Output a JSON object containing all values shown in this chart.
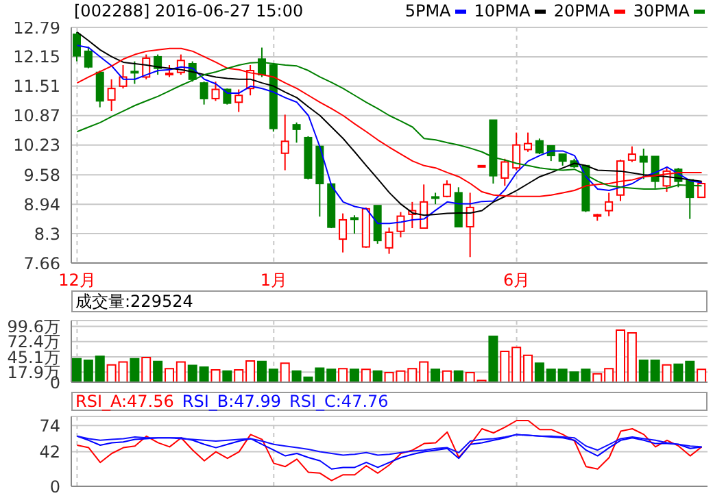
{
  "chart_data": [
    {
      "type": "candlestick",
      "title": "[002288] 2016-06-27 15:00",
      "legend": "top right",
      "grid": true,
      "categories": [
        "12月",
        null,
        null,
        null,
        null,
        null,
        null,
        null,
        null,
        null,
        null,
        null,
        null,
        null,
        null,
        null,
        null,
        "1月",
        null,
        null,
        null,
        null,
        null,
        null,
        null,
        null,
        null,
        null,
        null,
        null,
        null,
        null,
        null,
        null,
        null,
        null,
        null,
        null,
        "6月",
        null,
        null,
        null,
        null,
        null,
        null,
        null,
        null,
        null,
        null,
        null,
        null,
        null,
        null,
        null,
        null
      ],
      "ohlc": [
        [
          12.64,
          12.69,
          12.05,
          12.17
        ],
        [
          12.27,
          12.37,
          11.9,
          11.93
        ],
        [
          11.81,
          11.85,
          11.05,
          11.19
        ],
        [
          11.21,
          11.66,
          10.97,
          11.46
        ],
        [
          11.51,
          11.97,
          11.46,
          11.71
        ],
        [
          11.83,
          12.05,
          11.56,
          11.81
        ],
        [
          11.71,
          12.2,
          11.66,
          12.12
        ],
        [
          12.15,
          12.2,
          11.76,
          11.9
        ],
        [
          11.77,
          11.97,
          11.71,
          11.79
        ],
        [
          11.81,
          12.2,
          11.76,
          12.07
        ],
        [
          12.0,
          12.05,
          11.61,
          11.66
        ],
        [
          11.58,
          11.61,
          11.11,
          11.24
        ],
        [
          11.24,
          11.61,
          11.19,
          11.44
        ],
        [
          11.44,
          11.46,
          11.11,
          11.14
        ],
        [
          11.16,
          11.44,
          10.95,
          11.31
        ],
        [
          11.46,
          11.97,
          11.31,
          11.85
        ],
        [
          12.1,
          12.35,
          11.71,
          11.76
        ],
        [
          11.97,
          12.0,
          10.52,
          10.59
        ],
        [
          10.05,
          10.89,
          9.68,
          10.31
        ],
        [
          10.67,
          10.72,
          10.28,
          10.57
        ],
        [
          10.39,
          10.42,
          9.48,
          9.51
        ],
        [
          10.2,
          10.2,
          8.67,
          9.39
        ],
        [
          9.38,
          9.38,
          8.42,
          8.44
        ],
        [
          8.18,
          8.74,
          7.89,
          8.6
        ],
        [
          8.64,
          8.7,
          8.3,
          8.63
        ],
        [
          8.01,
          8.87,
          7.99,
          8.84
        ],
        [
          8.91,
          8.91,
          8.08,
          8.15
        ],
        [
          7.99,
          8.43,
          7.86,
          8.33
        ],
        [
          8.35,
          8.77,
          8.22,
          8.68
        ],
        [
          8.72,
          8.99,
          8.42,
          8.8
        ],
        [
          8.42,
          9.37,
          8.42,
          8.99
        ],
        [
          9.1,
          9.19,
          8.94,
          9.08
        ],
        [
          9.11,
          9.46,
          9.09,
          9.37
        ],
        [
          9.19,
          9.31,
          8.44,
          8.45
        ],
        [
          8.45,
          9.19,
          7.79,
          8.87
        ],
        [
          9.77,
          9.79,
          9.77,
          9.78
        ],
        [
          10.77,
          10.77,
          9.39,
          9.56
        ],
        [
          9.51,
          9.93,
          9.34,
          9.86
        ],
        [
          9.73,
          10.5,
          9.68,
          10.23
        ],
        [
          10.13,
          10.5,
          10.08,
          10.26
        ],
        [
          10.32,
          10.37,
          10.03,
          10.06
        ],
        [
          10.21,
          10.21,
          9.88,
          10.0
        ],
        [
          10.03,
          10.03,
          9.78,
          9.88
        ],
        [
          9.88,
          9.93,
          9.73,
          9.76
        ],
        [
          9.78,
          9.78,
          8.77,
          8.8
        ],
        [
          8.7,
          8.73,
          8.58,
          8.71
        ],
        [
          8.8,
          9.19,
          8.68,
          8.99
        ],
        [
          9.14,
          9.91,
          9.01,
          9.88
        ],
        [
          9.9,
          10.2,
          9.86,
          10.03
        ],
        [
          9.98,
          10.15,
          9.49,
          9.86
        ],
        [
          9.98,
          9.98,
          9.29,
          9.44
        ],
        [
          9.34,
          9.73,
          9.21,
          9.66
        ],
        [
          9.7,
          9.73,
          9.31,
          9.44
        ],
        [
          9.47,
          9.49,
          8.62,
          9.09
        ],
        [
          9.09,
          9.44,
          9.09,
          9.39
        ]
      ],
      "colors": [
        "#008000",
        "#008000",
        "#008000",
        "#ff0000",
        "#ff0000",
        "#008000",
        "#ff0000",
        "#008000",
        "#ff0000",
        "#ff0000",
        "#008000",
        "#008000",
        "#ff0000",
        "#008000",
        "#ff0000",
        "#ff0000",
        "#008000",
        "#008000",
        "#ff0000",
        "#008000",
        "#008000",
        "#008000",
        "#008000",
        "#ff0000",
        "#008000",
        "#ff0000",
        "#008000",
        "#ff0000",
        "#ff0000",
        "#ff0000",
        "#ff0000",
        "#008000",
        "#ff0000",
        "#008000",
        "#ff0000",
        "#ff0000",
        "#008000",
        "#ff0000",
        "#ff0000",
        "#ff0000",
        "#008000",
        "#008000",
        "#008000",
        "#008000",
        "#008000",
        "#ff0000",
        "#ff0000",
        "#ff0000",
        "#ff0000",
        "#008000",
        "#008000",
        "#ff0000",
        "#008000",
        "#008000",
        "#ff0000"
      ],
      "ylim": [
        7.66,
        12.79
      ],
      "yticks": [
        7.66,
        8.3,
        8.94,
        9.58,
        10.23,
        10.87,
        11.51,
        12.15,
        12.79
      ],
      "series": [
        {
          "type": "line",
          "name": "5PMA",
          "color": "#0000ff",
          "values": [
            12.4,
            12.35,
            12.15,
            11.95,
            11.66,
            11.66,
            11.76,
            11.85,
            11.87,
            11.93,
            11.9,
            11.66,
            11.56,
            11.36,
            11.36,
            11.51,
            11.46,
            11.38,
            11.26,
            11.16,
            10.87,
            10.18,
            9.34,
            8.99,
            8.89,
            8.84,
            8.52,
            8.52,
            8.55,
            8.6,
            8.62,
            8.81,
            8.99,
            8.95,
            8.95,
            9.0,
            9.01,
            9.26,
            9.63,
            9.88,
            10.0,
            10.1,
            10.1,
            10.0,
            9.54,
            9.27,
            9.24,
            9.31,
            9.39,
            9.54,
            9.63,
            9.75,
            9.6,
            9.45,
            9.41
          ]
        },
        {
          "type": "line",
          "name": "10PMA",
          "color": "#000000",
          "values": [
            12.69,
            12.5,
            12.3,
            12.15,
            12.03,
            12.0,
            11.97,
            11.93,
            11.9,
            11.87,
            11.82,
            11.76,
            11.71,
            11.68,
            11.66,
            11.66,
            11.58,
            11.51,
            11.38,
            11.26,
            11.06,
            10.87,
            10.62,
            10.37,
            10.08,
            9.78,
            9.49,
            9.19,
            8.94,
            8.75,
            8.7,
            8.72,
            8.74,
            8.75,
            8.75,
            8.8,
            8.99,
            9.11,
            9.24,
            9.39,
            9.54,
            9.63,
            9.73,
            9.83,
            9.78,
            9.68,
            9.67,
            9.66,
            9.62,
            9.58,
            9.56,
            9.54,
            9.51,
            9.47,
            9.44
          ]
        },
        {
          "type": "line",
          "name": "20PMA",
          "color": "#ff0000",
          "values": [
            11.58,
            11.71,
            11.83,
            11.95,
            12.1,
            12.2,
            12.27,
            12.3,
            12.33,
            12.33,
            12.27,
            12.15,
            12.03,
            11.9,
            11.87,
            11.8,
            11.76,
            11.71,
            11.58,
            11.46,
            11.31,
            11.16,
            11.02,
            10.87,
            10.69,
            10.52,
            10.34,
            10.18,
            10.03,
            9.88,
            9.78,
            9.73,
            9.63,
            9.54,
            9.39,
            9.21,
            9.14,
            9.12,
            9.11,
            9.11,
            9.11,
            9.14,
            9.19,
            9.24,
            9.34,
            9.37,
            9.39,
            9.44,
            9.47,
            9.54,
            9.56,
            9.6,
            9.63,
            9.63,
            9.63
          ]
        },
        {
          "type": "line",
          "name": "30PMA",
          "color": "#008000",
          "values": [
            10.52,
            10.62,
            10.72,
            10.85,
            10.97,
            11.09,
            11.19,
            11.29,
            11.41,
            11.53,
            11.64,
            11.76,
            11.82,
            11.9,
            11.97,
            12.02,
            12.03,
            12.0,
            11.97,
            11.95,
            11.85,
            11.71,
            11.59,
            11.46,
            11.31,
            11.16,
            11.02,
            10.87,
            10.75,
            10.62,
            10.37,
            10.34,
            10.28,
            10.23,
            10.16,
            10.08,
            9.96,
            9.9,
            9.83,
            9.78,
            9.73,
            9.7,
            9.68,
            9.7,
            9.58,
            9.44,
            9.34,
            9.31,
            9.29,
            9.27,
            9.27,
            9.29,
            9.36,
            9.35,
            9.34
          ]
        }
      ]
    },
    {
      "type": "bar",
      "title": "成交量:229524",
      "grid": true,
      "tick_labels": "y",
      "categories": [
        null,
        null,
        null,
        null,
        null,
        null,
        null,
        null,
        null,
        null,
        null,
        null,
        null,
        null,
        null,
        null,
        null,
        null,
        null,
        null,
        null,
        null,
        null,
        null,
        null,
        null,
        null,
        null,
        null,
        null,
        null,
        null,
        null,
        null,
        null,
        null,
        null,
        null,
        null,
        null,
        null,
        null,
        null,
        null,
        null,
        null,
        null,
        null,
        null,
        null,
        null,
        null,
        null,
        null,
        null
      ],
      "values": [
        42,
        39,
        46,
        31,
        36,
        42,
        44,
        37,
        24,
        36,
        30,
        27,
        22,
        20,
        22,
        38,
        37,
        23,
        34,
        20,
        9,
        25,
        23,
        24,
        23,
        23,
        20,
        17,
        20,
        24,
        36,
        23,
        20,
        20,
        17,
        3,
        82,
        55,
        62,
        48,
        34,
        23,
        23,
        18,
        23,
        15,
        24,
        93,
        88,
        39,
        39,
        31,
        32,
        37,
        23
      ],
      "colors": [
        "#008000",
        "#008000",
        "#008000",
        "#ff0000",
        "#ff0000",
        "#008000",
        "#ff0000",
        "#008000",
        "#ff0000",
        "#ff0000",
        "#008000",
        "#008000",
        "#ff0000",
        "#008000",
        "#ff0000",
        "#ff0000",
        "#008000",
        "#008000",
        "#ff0000",
        "#008000",
        "#008000",
        "#008000",
        "#008000",
        "#ff0000",
        "#008000",
        "#ff0000",
        "#008000",
        "#ff0000",
        "#ff0000",
        "#ff0000",
        "#ff0000",
        "#008000",
        "#ff0000",
        "#008000",
        "#ff0000",
        "#ff0000",
        "#008000",
        "#ff0000",
        "#ff0000",
        "#ff0000",
        "#008000",
        "#008000",
        "#008000",
        "#008000",
        "#008000",
        "#ff0000",
        "#ff0000",
        "#ff0000",
        "#ff0000",
        "#008000",
        "#008000",
        "#ff0000",
        "#008000",
        "#008000",
        "#ff0000"
      ],
      "ylim": [
        0,
        110
      ],
      "yticks": [
        0,
        {
          "value": 17.9,
          "label": "17.9万"
        },
        {
          "value": 45.1,
          "label": "45.1万"
        },
        {
          "value": 72.4,
          "label": "72.4万"
        },
        {
          "value": 99.6,
          "label": "99.6万"
        }
      ]
    },
    {
      "type": "line",
      "grid": true,
      "legend": "top left",
      "tick_labels": "y",
      "categories": [
        null,
        null,
        null,
        null,
        null,
        null,
        null,
        null,
        null,
        null,
        null,
        null,
        null,
        null,
        null,
        null,
        null,
        null,
        null,
        null,
        null,
        null,
        null,
        null,
        null,
        null,
        null,
        null,
        null,
        null,
        null,
        null,
        null,
        null,
        null,
        null,
        null,
        null,
        null,
        null,
        null,
        null,
        null,
        null,
        null,
        null,
        null,
        null,
        null,
        null,
        null,
        null,
        null,
        null,
        null
      ],
      "ylim": [
        0,
        85
      ],
      "yticks": [
        0,
        42,
        74
      ],
      "series": [
        {
          "name": "RSI_A:47.56",
          "color": "#ff0000",
          "values": [
            50,
            47,
            29,
            40,
            47,
            49,
            61,
            53,
            48,
            59,
            44,
            31,
            42,
            34,
            42,
            63,
            57,
            28,
            24,
            33,
            17,
            16,
            7,
            14,
            14,
            25,
            16,
            26,
            40,
            44,
            52,
            53,
            66,
            35,
            51,
            70,
            65,
            72,
            80,
            80,
            69,
            69,
            63,
            55,
            24,
            21,
            35,
            67,
            70,
            63,
            48,
            56,
            49,
            37,
            48
          ]
        },
        {
          "name": "RSI_B:47.99",
          "color": "#0000ff",
          "values": [
            61,
            56,
            50,
            53,
            54,
            57,
            58,
            59,
            59,
            59,
            56,
            51,
            47,
            51,
            55,
            58,
            51,
            44,
            37,
            40,
            35,
            31,
            21,
            23,
            23,
            29,
            23,
            29,
            35,
            39,
            42,
            44,
            46,
            34,
            51,
            53,
            56,
            59,
            63,
            62,
            61,
            60,
            59,
            56,
            44,
            37,
            47,
            56,
            59,
            56,
            52,
            52,
            51,
            46,
            48
          ]
        },
        {
          "name": "RSI_C:47.76",
          "color": "#1010ff",
          "values": [
            61,
            58,
            56,
            57,
            58,
            60,
            59,
            59,
            59,
            58,
            57,
            56,
            55,
            56,
            57,
            58,
            55,
            51,
            49,
            47,
            45,
            42,
            40,
            38,
            39,
            41,
            38,
            39,
            41,
            43,
            44,
            46,
            47,
            41,
            55,
            57,
            58,
            60,
            63,
            62,
            61,
            61,
            60,
            59,
            49,
            44,
            51,
            58,
            60,
            58,
            56,
            53,
            51,
            49,
            48
          ]
        }
      ]
    }
  ]
}
